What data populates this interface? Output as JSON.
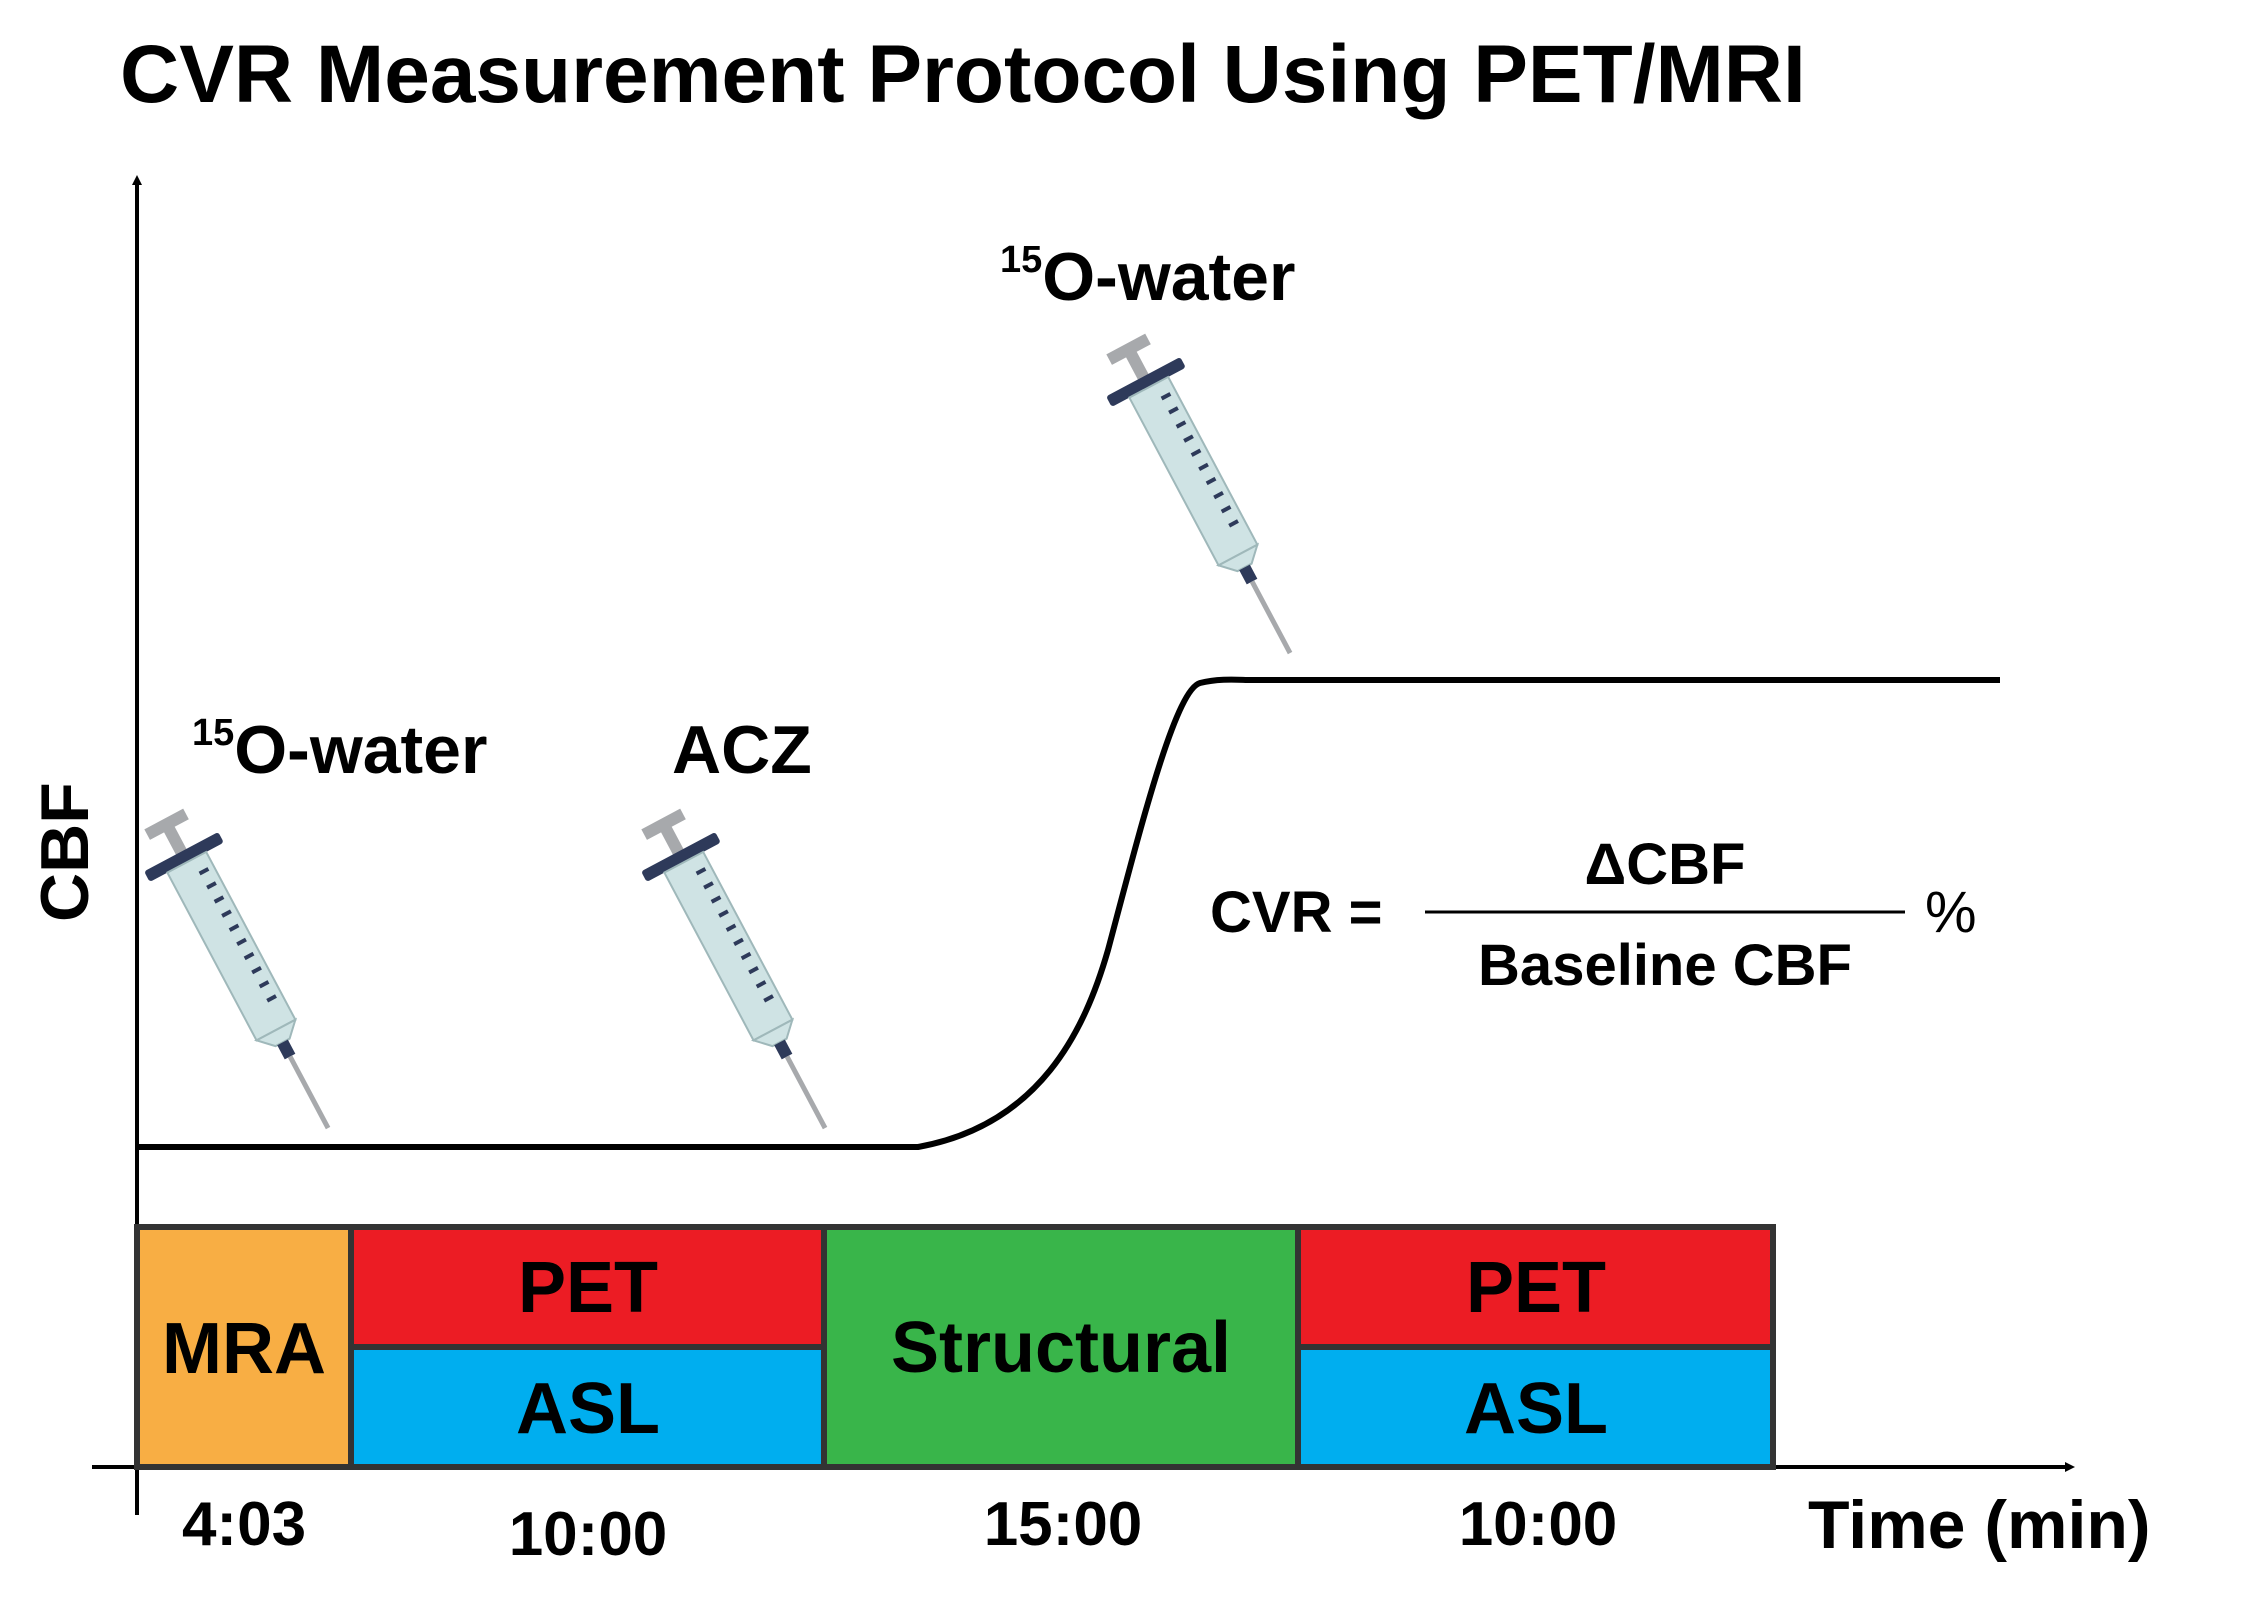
{
  "title": "CVR Measurement Protocol Using PET/MRI",
  "axes": {
    "y_label": "CBF",
    "x_label": "Time (min)"
  },
  "injections": [
    {
      "superscript": "15",
      "label": "O-water"
    },
    {
      "superscript": "",
      "label": "ACZ"
    },
    {
      "superscript": "15",
      "label": "O-water"
    }
  ],
  "formula": {
    "lhs": "CVR =",
    "numerator": "ΔCBF",
    "denominator": "Baseline CBF",
    "unit": "%"
  },
  "timeline": {
    "blocks": [
      {
        "label": "MRA",
        "duration": "4:03",
        "color": "#F8AE44"
      },
      {
        "top_label": "PET",
        "bottom_label": "ASL",
        "duration": "10:00",
        "top_color": "#EC1C24",
        "bottom_color": "#00AEEF"
      },
      {
        "label": "Structural",
        "duration": "15:00",
        "color": "#39B54A"
      },
      {
        "top_label": "PET",
        "bottom_label": "ASL",
        "duration": "10:00",
        "top_color": "#EC1C24",
        "bottom_color": "#00AEEF"
      }
    ]
  },
  "colors": {
    "syringe_barrel": "#CFE3E4",
    "syringe_accent": "#2E3A5A",
    "syringe_plunger": "#A7A9AC",
    "line": "#000000"
  }
}
